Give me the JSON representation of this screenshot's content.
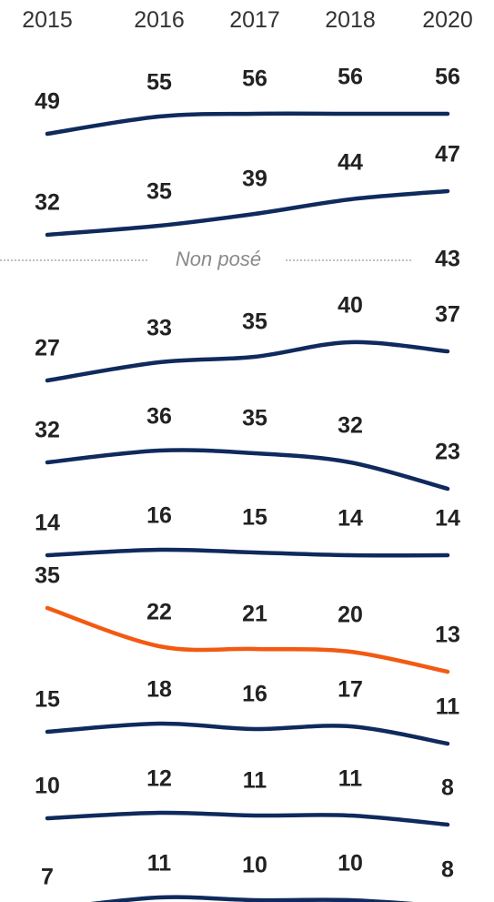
{
  "colors": {
    "default": "#0f2a5c",
    "highlight": "#f25a12"
  },
  "chart_data": {
    "type": "line",
    "years": [
      "2015",
      "2016",
      "2017",
      "2018",
      "2020"
    ],
    "series": [
      {
        "values": [
          49,
          55,
          56,
          56,
          56
        ]
      },
      {
        "values": [
          32,
          35,
          39,
          44,
          47
        ]
      },
      {
        "values": [
          null,
          null,
          null,
          null,
          43
        ],
        "note": "Non posé"
      },
      {
        "values": [
          27,
          33,
          35,
          40,
          37
        ]
      },
      {
        "values": [
          32,
          36,
          35,
          32,
          23
        ]
      },
      {
        "values": [
          14,
          16,
          15,
          14,
          14
        ]
      },
      {
        "values": [
          35,
          22,
          21,
          20,
          13
        ],
        "highlight": true
      },
      {
        "values": [
          15,
          18,
          16,
          17,
          11
        ]
      },
      {
        "values": [
          10,
          12,
          11,
          11,
          8
        ]
      },
      {
        "values": [
          7,
          11,
          10,
          10,
          8
        ]
      }
    ]
  }
}
